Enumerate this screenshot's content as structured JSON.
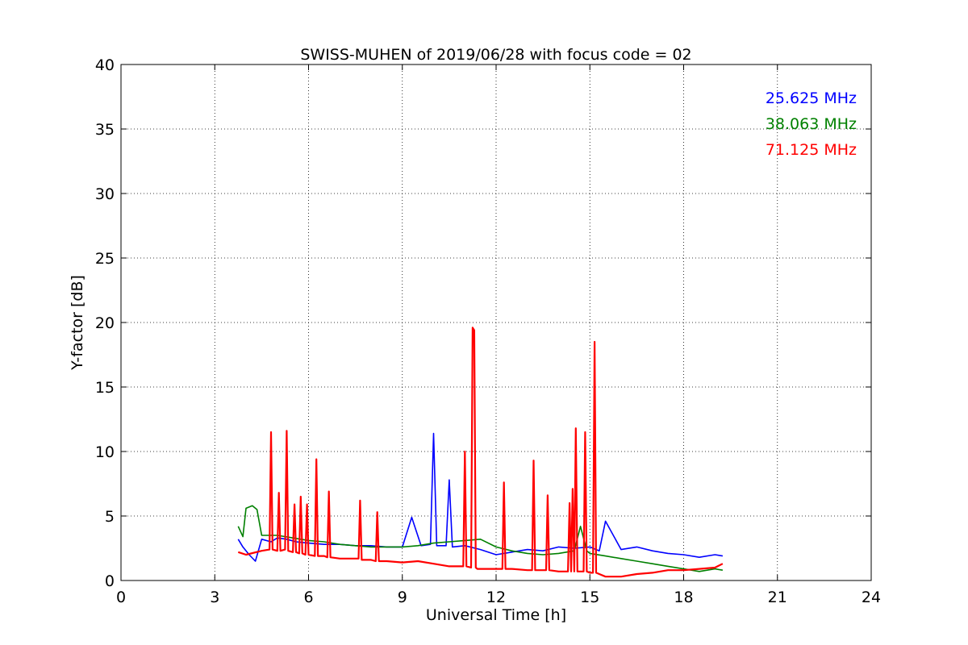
{
  "chart_data": {
    "type": "line",
    "title": "SWISS-MUHEN of 2019/06/28 with focus code = 02",
    "xlabel": "Universal Time [h]",
    "ylabel": "Y-factor [dB]",
    "xlim": [
      0,
      24
    ],
    "ylim": [
      0,
      40
    ],
    "xticks": [
      "0",
      "3",
      "6",
      "9",
      "12",
      "15",
      "18",
      "21",
      "24"
    ],
    "yticks": [
      "0",
      "5",
      "10",
      "15",
      "20",
      "25",
      "30",
      "35",
      "40"
    ],
    "grid": true,
    "legend_position": "top-right",
    "series": [
      {
        "name": "25.625 MHz",
        "color": "#0000ff",
        "x": [
          3.75,
          3.9,
          4.1,
          4.3,
          4.5,
          4.8,
          5.0,
          5.3,
          5.6,
          6.0,
          6.5,
          7.0,
          7.5,
          8.0,
          8.5,
          9.0,
          9.3,
          9.6,
          9.9,
          10.0,
          10.1,
          10.4,
          10.5,
          10.6,
          11.0,
          11.5,
          12.0,
          12.5,
          13.0,
          13.5,
          14.0,
          14.5,
          15.0,
          15.3,
          15.5,
          16.0,
          16.5,
          17.0,
          17.5,
          18.0,
          18.5,
          19.0,
          19.25
        ],
        "y": [
          3.2,
          2.6,
          2.0,
          1.5,
          3.2,
          3.0,
          3.3,
          3.2,
          3.0,
          2.9,
          2.8,
          2.8,
          2.7,
          2.7,
          2.6,
          2.6,
          4.9,
          2.7,
          2.8,
          11.4,
          2.7,
          2.7,
          7.8,
          2.6,
          2.7,
          2.4,
          2.0,
          2.2,
          2.4,
          2.3,
          2.6,
          2.5,
          2.6,
          2.3,
          4.6,
          2.4,
          2.6,
          2.3,
          2.1,
          2.0,
          1.8,
          2.0,
          1.9
        ]
      },
      {
        "name": "38.063 MHz",
        "color": "#008000",
        "x": [
          3.75,
          3.9,
          4.0,
          4.2,
          4.35,
          4.5,
          5.0,
          5.5,
          6.0,
          6.5,
          7.0,
          7.5,
          8.0,
          8.5,
          9.0,
          9.5,
          10.0,
          10.5,
          11.0,
          11.5,
          12.0,
          12.5,
          13.0,
          13.5,
          14.0,
          14.5,
          14.7,
          14.9,
          15.0,
          15.5,
          16.0,
          16.5,
          17.0,
          17.5,
          18.0,
          18.5,
          19.0,
          19.25
        ],
        "y": [
          4.2,
          3.4,
          5.6,
          5.8,
          5.5,
          3.5,
          3.5,
          3.3,
          3.1,
          3.0,
          2.8,
          2.7,
          2.6,
          2.6,
          2.6,
          2.7,
          2.9,
          3.0,
          3.1,
          3.2,
          2.6,
          2.3,
          2.1,
          2.0,
          2.1,
          2.3,
          4.2,
          2.3,
          2.1,
          1.9,
          1.7,
          1.5,
          1.3,
          1.1,
          0.9,
          0.7,
          0.9,
          0.8
        ]
      },
      {
        "name": "71.125 MHz",
        "color": "#ff0000",
        "x": [
          3.75,
          4.0,
          4.5,
          4.75,
          4.8,
          4.85,
          5.0,
          5.05,
          5.1,
          5.25,
          5.3,
          5.35,
          5.5,
          5.55,
          5.6,
          5.7,
          5.75,
          5.8,
          5.9,
          5.95,
          6.0,
          6.2,
          6.25,
          6.3,
          6.5,
          6.6,
          6.65,
          6.7,
          7.0,
          7.6,
          7.65,
          7.7,
          8.0,
          8.15,
          8.2,
          8.25,
          8.5,
          9.0,
          9.5,
          10.0,
          10.5,
          10.95,
          11.0,
          11.05,
          11.2,
          11.25,
          11.3,
          11.35,
          11.4,
          12.0,
          12.2,
          12.25,
          12.3,
          12.5,
          13.0,
          13.15,
          13.2,
          13.25,
          13.5,
          13.6,
          13.65,
          13.7,
          14.0,
          14.3,
          14.35,
          14.4,
          14.45,
          14.5,
          14.55,
          14.6,
          14.8,
          14.85,
          14.9,
          15.0,
          15.1,
          15.15,
          15.2,
          15.5,
          16.0,
          16.5,
          17.0,
          17.5,
          18.0,
          18.5,
          19.0,
          19.25
        ],
        "y": [
          2.2,
          2.0,
          2.3,
          2.4,
          11.5,
          2.4,
          2.3,
          6.8,
          2.3,
          2.4,
          11.6,
          2.3,
          2.2,
          5.9,
          2.2,
          2.1,
          6.5,
          2.1,
          2.0,
          5.9,
          2.0,
          1.9,
          9.4,
          1.9,
          1.9,
          1.8,
          6.9,
          1.8,
          1.7,
          1.7,
          6.2,
          1.6,
          1.6,
          1.5,
          5.3,
          1.5,
          1.5,
          1.4,
          1.5,
          1.3,
          1.1,
          1.1,
          10.0,
          1.1,
          1.0,
          19.6,
          19.4,
          1.0,
          0.9,
          0.9,
          0.9,
          7.6,
          0.9,
          0.9,
          0.8,
          0.8,
          9.3,
          0.8,
          0.8,
          0.8,
          6.6,
          0.8,
          0.7,
          0.7,
          6.0,
          0.7,
          7.1,
          0.7,
          11.8,
          0.7,
          0.7,
          11.5,
          0.7,
          0.6,
          0.6,
          18.5,
          0.6,
          0.3,
          0.3,
          0.5,
          0.6,
          0.8,
          0.8,
          0.9,
          1.0,
          1.3
        ]
      }
    ]
  }
}
